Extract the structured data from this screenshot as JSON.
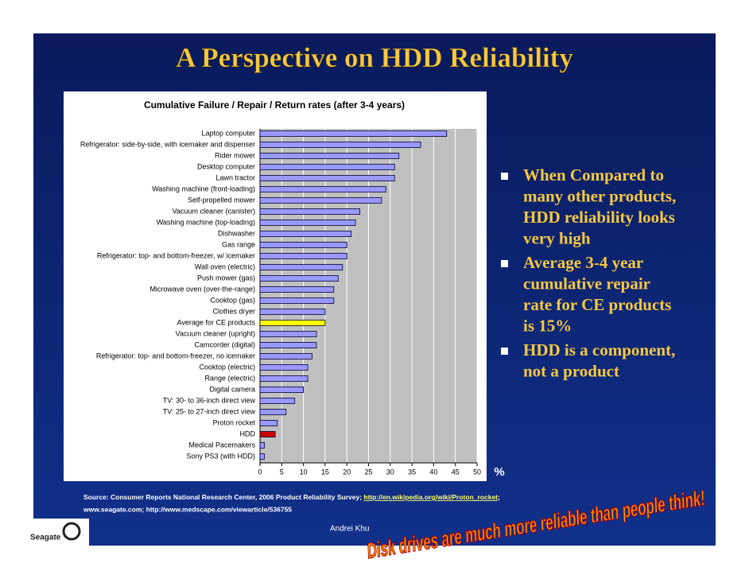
{
  "slide": {
    "title": "A Perspective on HDD Reliability",
    "bullets": [
      {
        "lines": [
          "When Compared to",
          "many other products,",
          "HDD reliability looks",
          "very high"
        ]
      },
      {
        "lines": [
          "Average 3-4 year",
          "cumulative repair",
          "rate for CE products",
          "is 15%"
        ]
      },
      {
        "lines": [
          "HDD is a component,",
          "not a product"
        ]
      }
    ],
    "source_line1": "Source: Consumer Reports National Research Center, 2006 Product Reliability Survey; ",
    "source_link": "http://en.wikipedia.org/wiki/Proton_rocket",
    "source_sep": ";",
    "source_line2": "www.seagate.com; http://www.medscape.com/viewarticle/536755",
    "footer": "Andrei Khu",
    "wordart": "Disk drives are much more reliable than people think!",
    "logo": "Seagate"
  },
  "chart_data": {
    "type": "bar",
    "orientation": "horizontal",
    "title": "Cumulative Failure / Repair / Return rates (after 3-4 years)",
    "xlabel": "%",
    "categories": [
      "Laptop computer",
      "Refrigerator: side-by-side, with icemaker and dispenser",
      "Rider mower",
      "Desktop computer",
      "Lawn tractor",
      "Washing machine (front-loading)",
      "Self-propelled mower",
      "Vacuum cleaner (canister)",
      "Washing machine (top-loading)",
      "Dishwasher",
      "Gas range",
      "Refrigerator: top- and bottom-freezer, w/ icemaker",
      "Wall oven (electric)",
      "Push mower (gas)",
      "Microwave oven (over-the-range)",
      "Cooktop (gas)",
      "Clothes dryer",
      "Average for CE products",
      "Vacuum cleaner (upright)",
      "Camcorder (digital)",
      "Refrigerator: top- and bottom-freezer, no icemaker",
      "Cooktop (electric)",
      "Range (electric)",
      "Digital camera",
      "TV: 30- to 36-inch direct view",
      "TV: 25- to 27-inch direct view",
      "Proton rocket",
      "HDD",
      "Medical Pacemakers",
      "Sony PS3 (with HDD)"
    ],
    "values": [
      43,
      37,
      32,
      31,
      31,
      29,
      28,
      23,
      22,
      21,
      20,
      20,
      19,
      18,
      17,
      17,
      15,
      15,
      13,
      13,
      12,
      11,
      11,
      10,
      8,
      6,
      4,
      3.5,
      1,
      1
    ],
    "colors": [
      "#9999ff",
      "#9999ff",
      "#9999ff",
      "#9999ff",
      "#9999ff",
      "#9999ff",
      "#9999ff",
      "#9999ff",
      "#9999ff",
      "#9999ff",
      "#9999ff",
      "#9999ff",
      "#9999ff",
      "#9999ff",
      "#9999ff",
      "#9999ff",
      "#9999ff",
      "#ffff00",
      "#9999ff",
      "#9999ff",
      "#9999ff",
      "#9999ff",
      "#9999ff",
      "#9999ff",
      "#9999ff",
      "#9999ff",
      "#9999ff",
      "#cc0000",
      "#9999ff",
      "#9999ff"
    ],
    "xlim": [
      0,
      50
    ],
    "xticks": [
      0,
      5,
      10,
      15,
      20,
      25,
      30,
      35,
      40,
      45,
      50
    ],
    "grid": true
  }
}
